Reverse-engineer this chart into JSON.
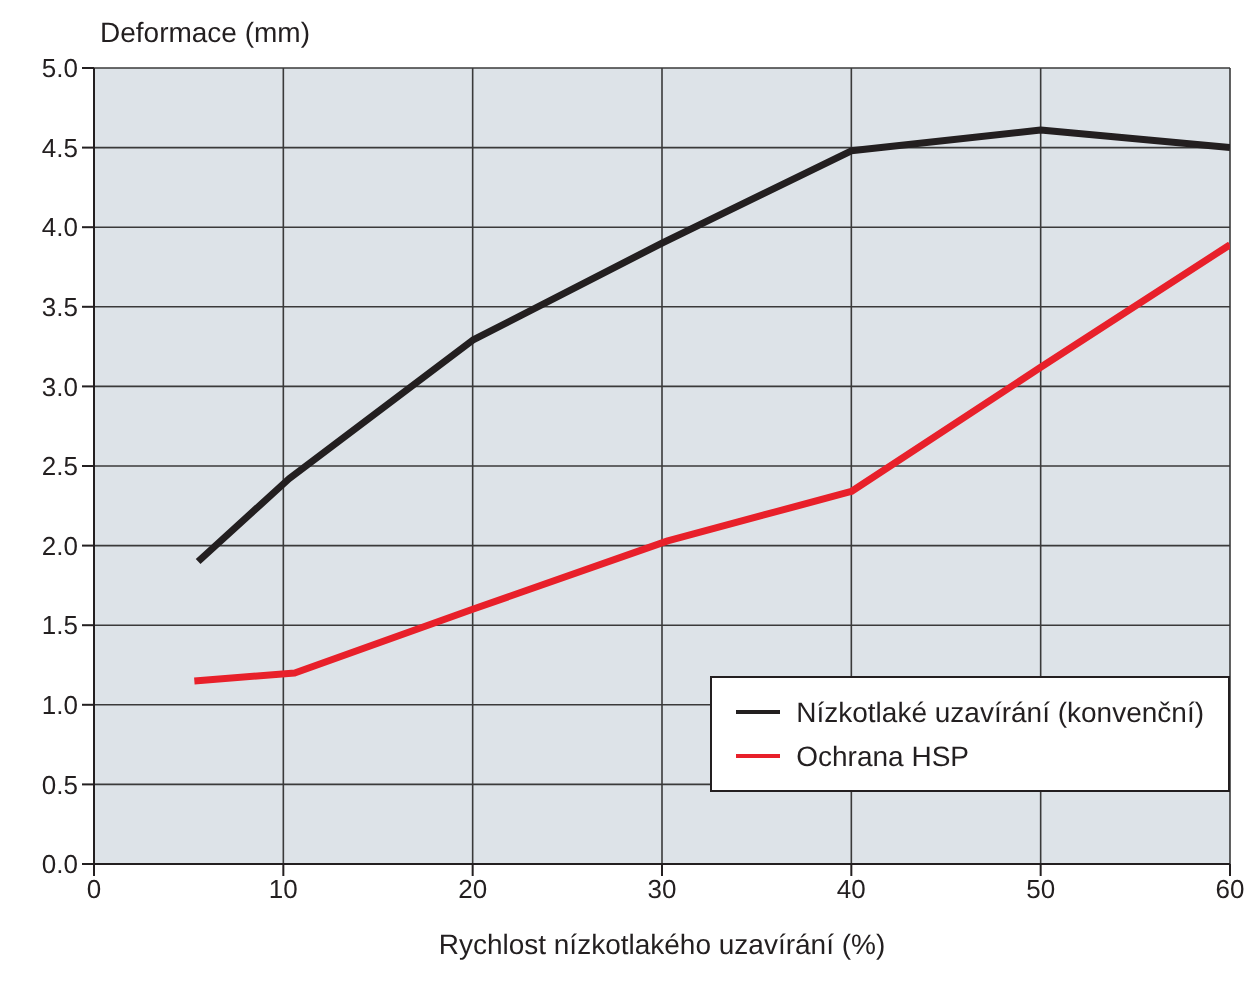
{
  "chart_data": {
    "type": "line",
    "ylabel": "Deformace (mm)",
    "xlabel": "Rychlost nízkotlakého uzavírání (%)",
    "xlim": [
      0,
      60
    ],
    "xticks": [
      0,
      10,
      20,
      30,
      40,
      50,
      60
    ],
    "ylim": [
      0,
      5
    ],
    "yticks": [
      {
        "value": 0,
        "label": "0.0"
      },
      {
        "value": 0.5,
        "label": "0.5"
      },
      {
        "value": 1,
        "label": "1.0"
      },
      {
        "value": 1.5,
        "label": "1.5"
      },
      {
        "value": 2,
        "label": "2.0"
      },
      {
        "value": 2.5,
        "label": "2.5"
      },
      {
        "value": 3,
        "label": "3.0"
      },
      {
        "value": 3.5,
        "label": "3.5"
      },
      {
        "value": 4,
        "label": "4.0"
      },
      {
        "value": 4.5,
        "label": "4.5"
      },
      {
        "value": 5,
        "label": "5.0"
      }
    ],
    "grid": true,
    "legend": "bottom right",
    "marker": "none",
    "line_style": "solid",
    "series": [
      {
        "name": "Nízkotlaké uzavírání (konvenční)",
        "color": "#231f20",
        "x": [
          5.5,
          10.3,
          20,
          30,
          40,
          50,
          60
        ],
        "values": [
          1.9,
          2.42,
          3.29,
          3.9,
          4.48,
          4.61,
          4.5
        ]
      },
      {
        "name": "Ochrana HSP",
        "color": "#e8202a",
        "x": [
          5.3,
          10.6,
          20,
          30.3,
          40,
          50,
          60
        ],
        "values": [
          1.15,
          1.2,
          1.6,
          2.03,
          2.34,
          3.12,
          3.89
        ]
      }
    ]
  }
}
